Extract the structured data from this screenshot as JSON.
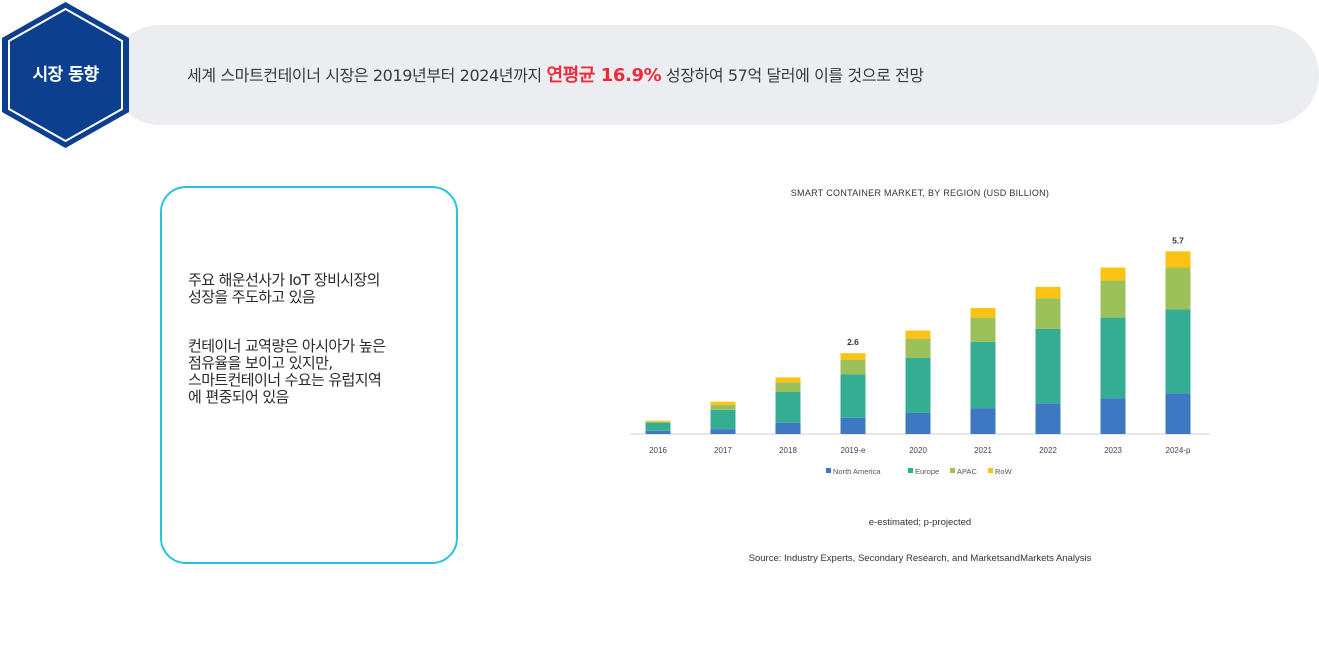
{
  "header": {
    "badge": "시장 동향",
    "headline_pre": "세계 스마트컨테이너 시장은 2019년부터 2024년까지 ",
    "headline_highlight": "연평균 16.9%",
    "headline_post": " 성장하여 57억 달러에 이를 것으로 전망"
  },
  "notes": [
    [
      "주요 해운선사가 IoT 장비시장의",
      "성장을 주도하고 있음"
    ],
    [
      "컨테이너 교역량은 아시아가 높은",
      "점유율을 보이고 있지만,",
      "스마트컨테이너  수요는 유럽지역",
      "에 편중되어 있음"
    ]
  ],
  "colors": {
    "accent_red": "#ee2b3b",
    "hex_blue": "#0d3f8f",
    "box_border": "#29c2e0",
    "north_america": "#3e78c2",
    "europe": "#35ad93",
    "apac": "#9cc05a",
    "row": "#fcc314"
  },
  "chart_data": {
    "type": "bar",
    "stacked": true,
    "title": "SMART CONTAINER MARKET, BY REGION (USD BILLION)",
    "categories": [
      "2016",
      "2017",
      "2018",
      "2019-e",
      "2020",
      "2021",
      "2022",
      "2023",
      "2024-p"
    ],
    "series": [
      {
        "name": "North America",
        "color": "#3e78c2",
        "values": [
          0.1,
          0.15,
          0.35,
          0.5,
          0.65,
          0.8,
          0.95,
          1.1,
          1.25
        ]
      },
      {
        "name": "Europe",
        "color": "#35ad93",
        "values": [
          0.25,
          0.6,
          0.95,
          1.35,
          1.7,
          2.05,
          2.3,
          2.5,
          2.6
        ]
      },
      {
        "name": "APAC",
        "color": "#9cc05a",
        "values": [
          0.03,
          0.15,
          0.3,
          0.45,
          0.6,
          0.75,
          0.95,
          1.15,
          1.3
        ]
      },
      {
        "name": "RoW",
        "color": "#fcc314",
        "values": [
          0.03,
          0.1,
          0.15,
          0.2,
          0.25,
          0.3,
          0.35,
          0.4,
          0.5
        ]
      }
    ],
    "data_labels": [
      {
        "category": "2019-e",
        "text": "2.6"
      },
      {
        "category": "2024-p",
        "text": "5.7"
      }
    ],
    "ylim": [
      0,
      6
    ],
    "grid": false,
    "legend": "bottom",
    "footnote": "e-estimated;  p-projected",
    "source": "Source: Industry Experts, Secondary Research, and MarketsandMarkets Analysis"
  }
}
